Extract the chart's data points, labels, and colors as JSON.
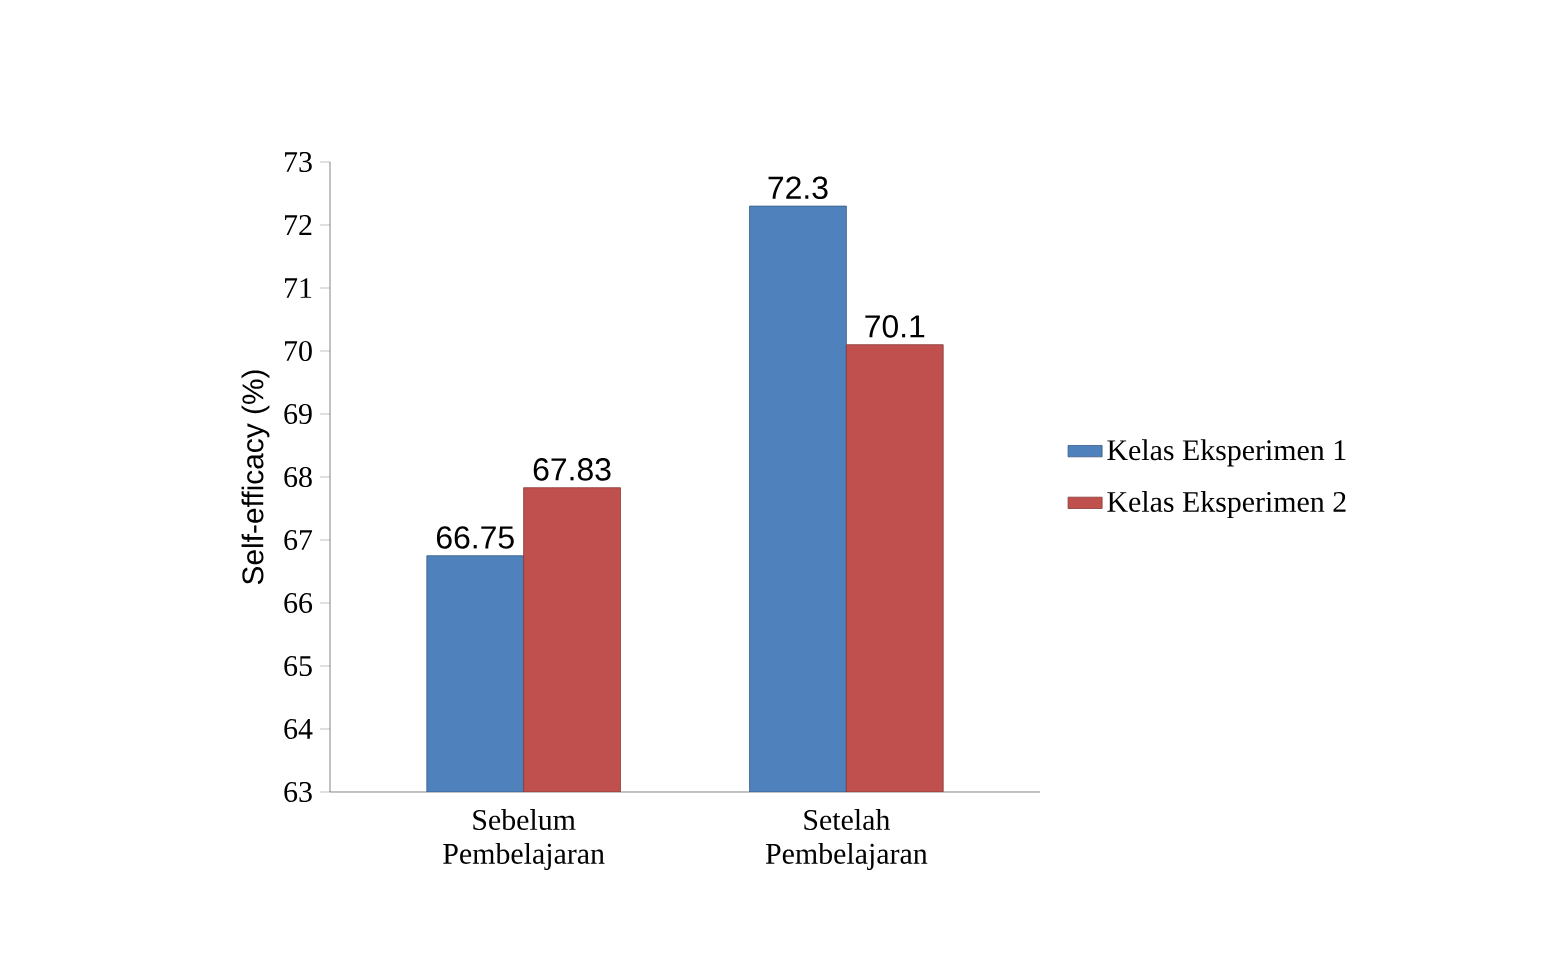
{
  "chart_data": {
    "type": "bar",
    "ylabel": "Self-efficacy (%)",
    "categories": [
      "Sebelum Pembelajaran",
      "Setelah Pembelajaran"
    ],
    "series": [
      {
        "name": "Kelas Eksperimen 1",
        "color": "#4f81bd",
        "values": [
          66.75,
          72.3
        ],
        "value_labels": [
          "66.75",
          "72.3"
        ]
      },
      {
        "name": "Kelas Eksperimen 2",
        "color": "#c0504d",
        "values": [
          67.83,
          70.1
        ],
        "value_labels": [
          "67.83",
          "70.1"
        ]
      }
    ],
    "ylim": [
      63,
      73
    ],
    "yticks": [
      63,
      64,
      65,
      66,
      67,
      68,
      69,
      70,
      71,
      72,
      73
    ],
    "legend": "right",
    "grid": false
  }
}
